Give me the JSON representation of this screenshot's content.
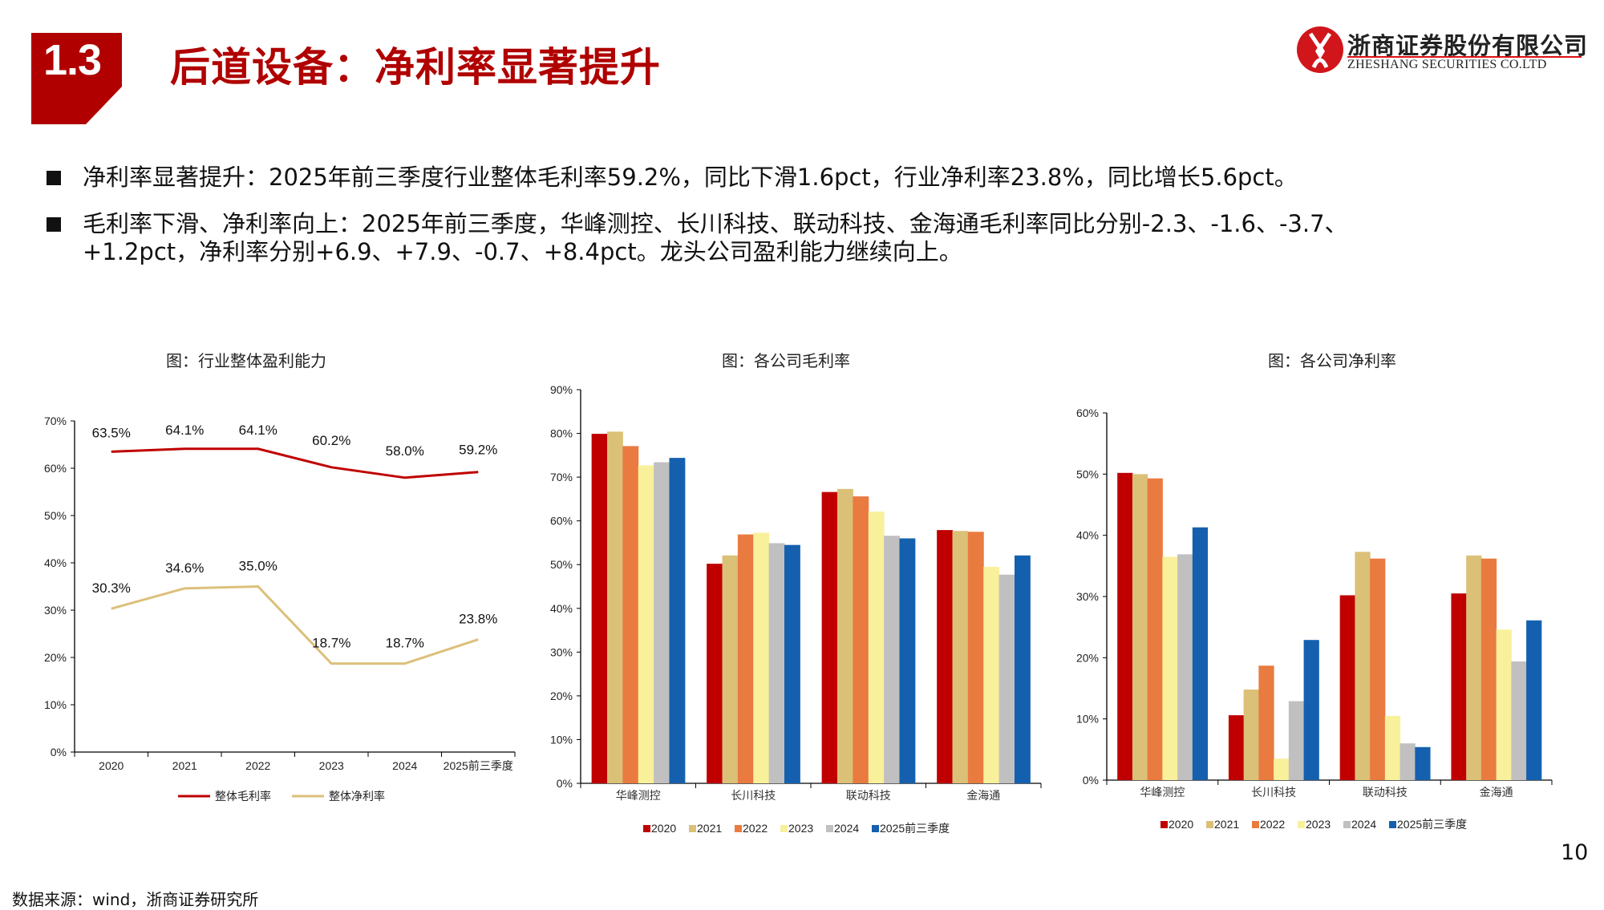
{
  "header": {
    "section_number": "1.3",
    "title": "后道设备：净利率显著提升",
    "logo_cn": "浙商证券股份有限公司",
    "logo_en": "ZHESHANG SECURITIES CO.LTD",
    "brand_color": "#b00000"
  },
  "bullets": [
    {
      "text": "净利率显著提升：2025年前三季度行业整体毛利率59.2%，同比下滑1.6pct，行业净利率23.8%，同比增长5.6pct。"
    },
    {
      "text": "毛利率下滑、净利率向上：2025年前三季度，华峰测控、长川科技、联动科技、金海通毛利率同比分别-2.3、-1.6、-3.7、",
      "text2": "+1.2pct，净利率分别+6.9、+7.9、-0.7、+8.4pct。龙头公司盈利能力继续向上。"
    }
  ],
  "footer": {
    "page_number": "10",
    "source": "数据来源：wind，浙商证券研究所"
  },
  "chart_data": [
    {
      "type": "line",
      "title": "图：行业整体盈利能力",
      "categories": [
        "2020",
        "2021",
        "2022",
        "2023",
        "2024",
        "2025前三季度"
      ],
      "ylim": [
        0,
        70
      ],
      "yticks": [
        "0%",
        "10%",
        "20%",
        "30%",
        "40%",
        "50%",
        "60%",
        "70%"
      ],
      "grid": false,
      "legend": "bottom",
      "series": [
        {
          "name": "整体毛利率",
          "color": "#c00000",
          "values": [
            63.5,
            64.1,
            64.1,
            60.2,
            58.0,
            59.2
          ],
          "labels": [
            "63.5%",
            "64.1%",
            "64.1%",
            "60.2%",
            "58.0%",
            "59.2%"
          ]
        },
        {
          "name": "整体净利率",
          "color": "#dcc07a",
          "values": [
            30.3,
            34.6,
            35.0,
            18.7,
            18.7,
            23.8
          ],
          "labels": [
            "30.3%",
            "34.6%",
            "35.0%",
            "18.7%",
            "18.7%",
            "23.8%"
          ]
        }
      ]
    },
    {
      "type": "bar",
      "title": "图：各公司毛利率",
      "categories": [
        "华峰测控",
        "长川科技",
        "联动科技",
        "金海通"
      ],
      "ylim": [
        0,
        90
      ],
      "yticks": [
        "0%",
        "10%",
        "20%",
        "30%",
        "40%",
        "50%",
        "60%",
        "70%",
        "80%",
        "90%"
      ],
      "grid": false,
      "legend": "bottom",
      "series": [
        {
          "name": "2020",
          "color": "#c00000",
          "values": [
            79.9,
            50.2,
            66.6,
            57.9
          ]
        },
        {
          "name": "2021",
          "color": "#dbc077",
          "values": [
            80.4,
            52.1,
            67.3,
            57.7
          ]
        },
        {
          "name": "2022",
          "color": "#e97b40",
          "values": [
            77.1,
            56.9,
            65.6,
            57.5
          ]
        },
        {
          "name": "2023",
          "color": "#f9f09c",
          "values": [
            72.7,
            57.3,
            62.1,
            49.5
          ]
        },
        {
          "name": "2024",
          "color": "#c0c0c0",
          "values": [
            73.4,
            54.9,
            56.6,
            47.7
          ]
        },
        {
          "name": "2025前三季度",
          "color": "#1560ae",
          "values": [
            74.4,
            54.5,
            56.0,
            52.1
          ]
        }
      ]
    },
    {
      "type": "bar",
      "title": "图：各公司净利率",
      "categories": [
        "华峰测控",
        "长川科技",
        "联动科技",
        "金海通"
      ],
      "ylim": [
        0,
        60
      ],
      "yticks": [
        "0%",
        "10%",
        "20%",
        "30%",
        "40%",
        "50%",
        "60%"
      ],
      "grid": false,
      "legend": "bottom",
      "series": [
        {
          "name": "2020",
          "color": "#c00000",
          "values": [
            50.2,
            10.6,
            30.2,
            30.5
          ]
        },
        {
          "name": "2021",
          "color": "#dbc077",
          "values": [
            50.0,
            14.8,
            37.3,
            36.7
          ]
        },
        {
          "name": "2022",
          "color": "#e97b40",
          "values": [
            49.3,
            18.7,
            36.2,
            36.2
          ]
        },
        {
          "name": "2023",
          "color": "#f9f09c",
          "values": [
            36.5,
            3.5,
            10.5,
            24.6
          ]
        },
        {
          "name": "2024",
          "color": "#c0c0c0",
          "values": [
            36.9,
            12.9,
            6.0,
            19.4
          ]
        },
        {
          "name": "2025前三季度",
          "color": "#1560ae",
          "values": [
            41.3,
            22.9,
            5.4,
            26.1
          ]
        }
      ]
    }
  ]
}
